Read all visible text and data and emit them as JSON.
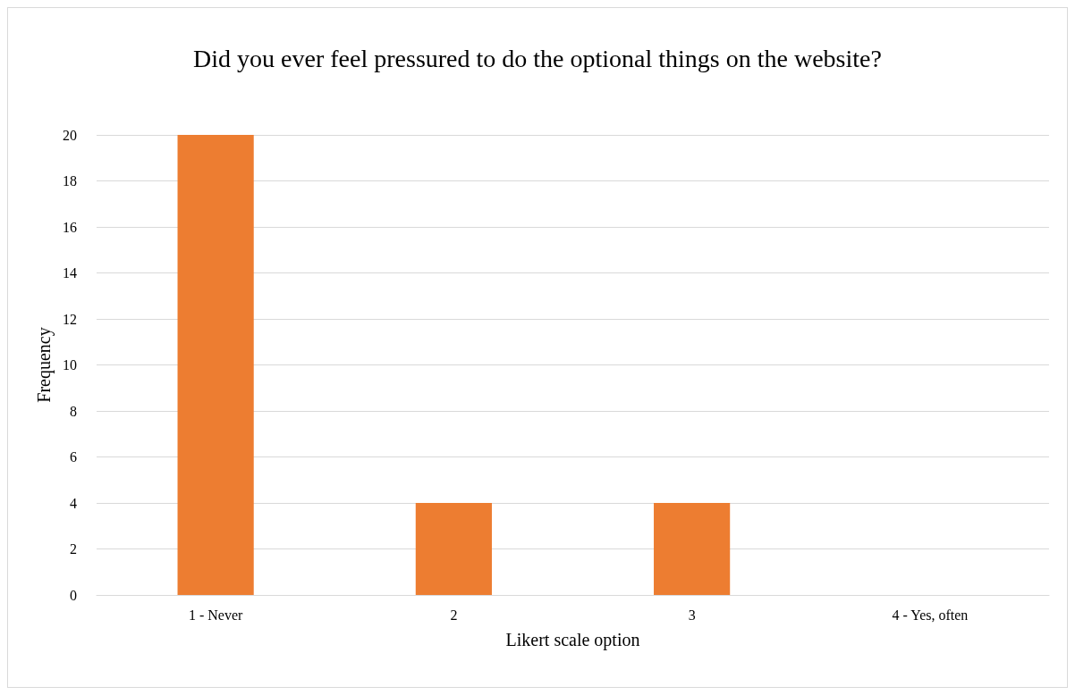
{
  "chart_data": {
    "type": "bar",
    "title": "Did you ever feel pressured to do the optional things on the website?",
    "xlabel": "Likert scale option",
    "ylabel": "Frequency",
    "categories": [
      "1 - Never",
      "2",
      "3",
      "4 - Yes, often"
    ],
    "values": [
      20,
      4,
      4,
      0
    ],
    "color": "#ed7d31",
    "ylim": [
      0,
      20
    ],
    "yticks": [
      0,
      2,
      4,
      6,
      8,
      10,
      12,
      14,
      16,
      18,
      20
    ],
    "grid": "y"
  }
}
